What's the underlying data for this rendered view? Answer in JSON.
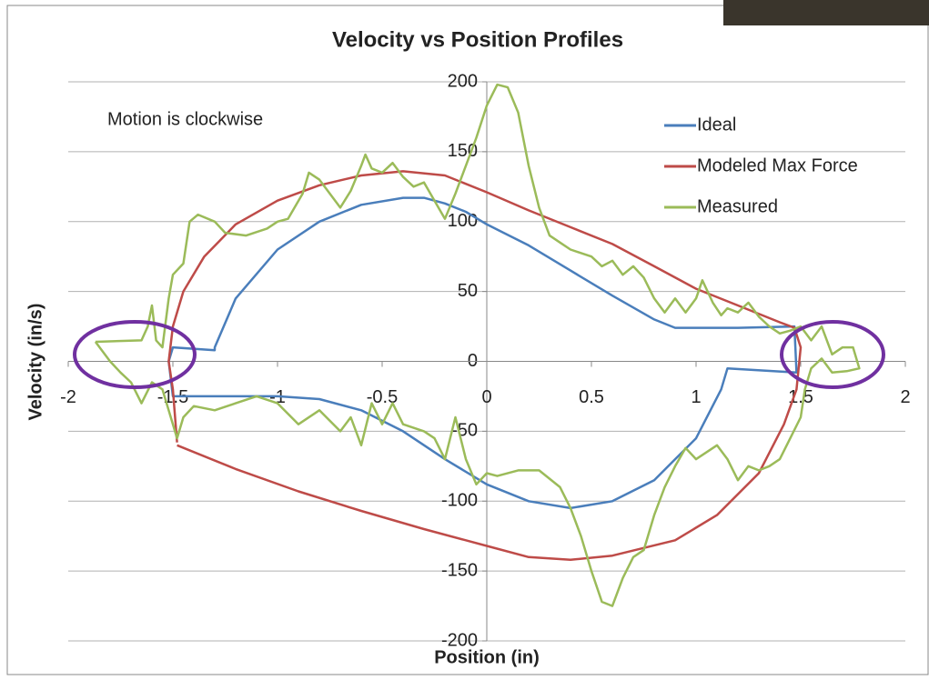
{
  "chart_data": {
    "type": "line",
    "title": "Velocity vs Position Profiles",
    "annotation": "Motion is clockwise",
    "x_label": "Position (in)",
    "y_label": "Velocity (in/s)",
    "xlim": [
      -2,
      2
    ],
    "xticks": [
      -2,
      -1.5,
      -1,
      -0.5,
      0,
      0.5,
      1,
      1.5,
      2
    ],
    "ylim": [
      -200,
      200
    ],
    "yticks": [
      -200,
      -150,
      -100,
      -50,
      0,
      50,
      100,
      150,
      200
    ],
    "grid": true,
    "legend": "upper right",
    "series": [
      {
        "name": "Ideal",
        "color": "#4a7ebb",
        "x": [
          -1.52,
          -1.5,
          -1.3,
          -1.3,
          -1.2,
          -1.0,
          -0.8,
          -0.6,
          -0.4,
          -0.3,
          -0.2,
          -0.1,
          0,
          0.2,
          0.4,
          0.6,
          0.8,
          0.9,
          1.2,
          1.47,
          1.48,
          1.15,
          1.12,
          1.0,
          0.8,
          0.6,
          0.4,
          0.2,
          0,
          -0.2,
          -0.4,
          -0.6,
          -0.8,
          -1.0,
          -1.5,
          -1.52
        ],
        "values": [
          0,
          10,
          8,
          10,
          45,
          80,
          100,
          112,
          117,
          117,
          113,
          107,
          98,
          83,
          65,
          47,
          30,
          24,
          24,
          25,
          -8,
          -5,
          -20,
          -55,
          -85,
          -100,
          -105,
          -100,
          -88,
          -70,
          -50,
          -35,
          -27,
          -25,
          -25,
          0
        ]
      },
      {
        "name": "Modeled Max Force",
        "color": "#be4b48",
        "x": [
          -1.48,
          -1.5,
          -1.52,
          -1.5,
          -1.45,
          -1.35,
          -1.2,
          -1.0,
          -0.8,
          -0.6,
          -0.4,
          -0.2,
          0,
          0.2,
          0.4,
          0.6,
          0.8,
          1.0,
          1.2,
          1.4,
          1.47,
          1.5,
          1.48,
          1.42,
          1.3,
          1.1,
          0.9,
          0.6,
          0.4,
          0.2,
          0,
          -0.3,
          -0.6,
          -0.9,
          -1.2,
          -1.48
        ],
        "values": [
          -58,
          -20,
          0,
          25,
          50,
          75,
          98,
          115,
          126,
          133,
          136,
          133,
          121,
          108,
          96,
          84,
          68,
          52,
          40,
          28,
          24,
          10,
          -20,
          -45,
          -80,
          -110,
          -128,
          -139,
          -142,
          -140,
          -132,
          -120,
          -107,
          -93,
          -77,
          -60
        ]
      },
      {
        "name": "Measured",
        "color": "#9bbb59",
        "x": [
          -1.87,
          -1.65,
          -1.62,
          -1.6,
          -1.58,
          -1.55,
          -1.52,
          -1.5,
          -1.45,
          -1.42,
          -1.38,
          -1.3,
          -1.25,
          -1.15,
          -1.05,
          -1.0,
          -0.95,
          -0.88,
          -0.85,
          -0.8,
          -0.7,
          -0.65,
          -0.6,
          -0.58,
          -0.55,
          -0.5,
          -0.45,
          -0.4,
          -0.35,
          -0.3,
          -0.25,
          -0.2,
          -0.15,
          -0.1,
          -0.05,
          0,
          0.05,
          0.1,
          0.15,
          0.2,
          0.25,
          0.3,
          0.35,
          0.4,
          0.5,
          0.55,
          0.6,
          0.65,
          0.7,
          0.75,
          0.8,
          0.85,
          0.9,
          0.95,
          1.0,
          1.03,
          1.08,
          1.12,
          1.15,
          1.2,
          1.25,
          1.3,
          1.35,
          1.4,
          1.45,
          1.5,
          1.55,
          1.6,
          1.65,
          1.7,
          1.75,
          1.78,
          1.72,
          1.65,
          1.6,
          1.55,
          1.52,
          1.5,
          1.45,
          1.4,
          1.35,
          1.3,
          1.25,
          1.2,
          1.15,
          1.1,
          1.05,
          1.0,
          0.95,
          0.9,
          0.85,
          0.8,
          0.75,
          0.7,
          0.65,
          0.6,
          0.55,
          0.5,
          0.45,
          0.4,
          0.35,
          0.25,
          0.15,
          0.05,
          0,
          -0.05,
          -0.1,
          -0.15,
          -0.2,
          -0.25,
          -0.3,
          -0.4,
          -0.45,
          -0.5,
          -0.55,
          -0.6,
          -0.65,
          -0.7,
          -0.8,
          -0.9,
          -1.0,
          -1.1,
          -1.2,
          -1.3,
          -1.4,
          -1.45,
          -1.48,
          -1.52,
          -1.55,
          -1.6,
          -1.65,
          -1.7,
          -1.75,
          -1.8,
          -1.87
        ],
        "values": [
          14,
          15,
          25,
          40,
          15,
          10,
          45,
          62,
          70,
          100,
          105,
          100,
          92,
          90,
          95,
          100,
          102,
          120,
          135,
          130,
          110,
          122,
          140,
          148,
          138,
          135,
          142,
          132,
          125,
          128,
          115,
          102,
          120,
          140,
          160,
          183,
          198,
          196,
          178,
          140,
          110,
          90,
          85,
          80,
          75,
          68,
          72,
          62,
          68,
          60,
          45,
          35,
          45,
          35,
          45,
          58,
          42,
          33,
          38,
          35,
          42,
          32,
          25,
          20,
          22,
          25,
          15,
          25,
          5,
          10,
          10,
          -5,
          -7,
          -8,
          2,
          -5,
          -20,
          -40,
          -55,
          -70,
          -75,
          -78,
          -75,
          -85,
          -70,
          -60,
          -65,
          -70,
          -62,
          -75,
          -90,
          -110,
          -135,
          -140,
          -155,
          -175,
          -172,
          -150,
          -125,
          -105,
          -90,
          -78,
          -78,
          -82,
          -80,
          -88,
          -70,
          -40,
          -70,
          -55,
          -50,
          -45,
          -30,
          -45,
          -30,
          -60,
          -40,
          -50,
          -35,
          -45,
          -30,
          -25,
          -30,
          -35,
          -32,
          -40,
          -55,
          -35,
          -20,
          -15,
          -30,
          -15,
          -8,
          0,
          14
        ]
      }
    ]
  }
}
